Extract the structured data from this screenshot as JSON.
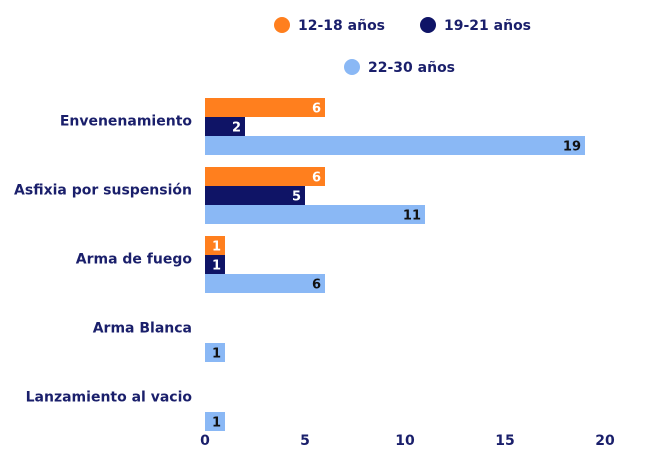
{
  "chart_data": {
    "type": "bar",
    "orientation": "horizontal",
    "categories": [
      "Envenenamiento",
      "Asfixia por suspensión",
      "Arma de fuego",
      "Arma Blanca",
      "Lanzamiento al vacio"
    ],
    "series": [
      {
        "name": "12-18 años",
        "color": "#ff7f1e",
        "values": [
          6,
          6,
          1,
          null,
          null
        ],
        "label_color": "#ffffff"
      },
      {
        "name": "19-21 años",
        "color": "#0f1466",
        "values": [
          2,
          5,
          1,
          null,
          null
        ],
        "label_color": "#ffffff"
      },
      {
        "name": "22-30 años",
        "color": "#8ab8f5",
        "values": [
          19,
          11,
          6,
          1,
          1
        ],
        "label_color": "#111111"
      }
    ],
    "xlim": [
      0,
      20
    ],
    "x_ticks": [
      0,
      5,
      10,
      15,
      20
    ],
    "grid": false,
    "legend_position": "top-right",
    "title": "",
    "xlabel": "",
    "ylabel": ""
  }
}
